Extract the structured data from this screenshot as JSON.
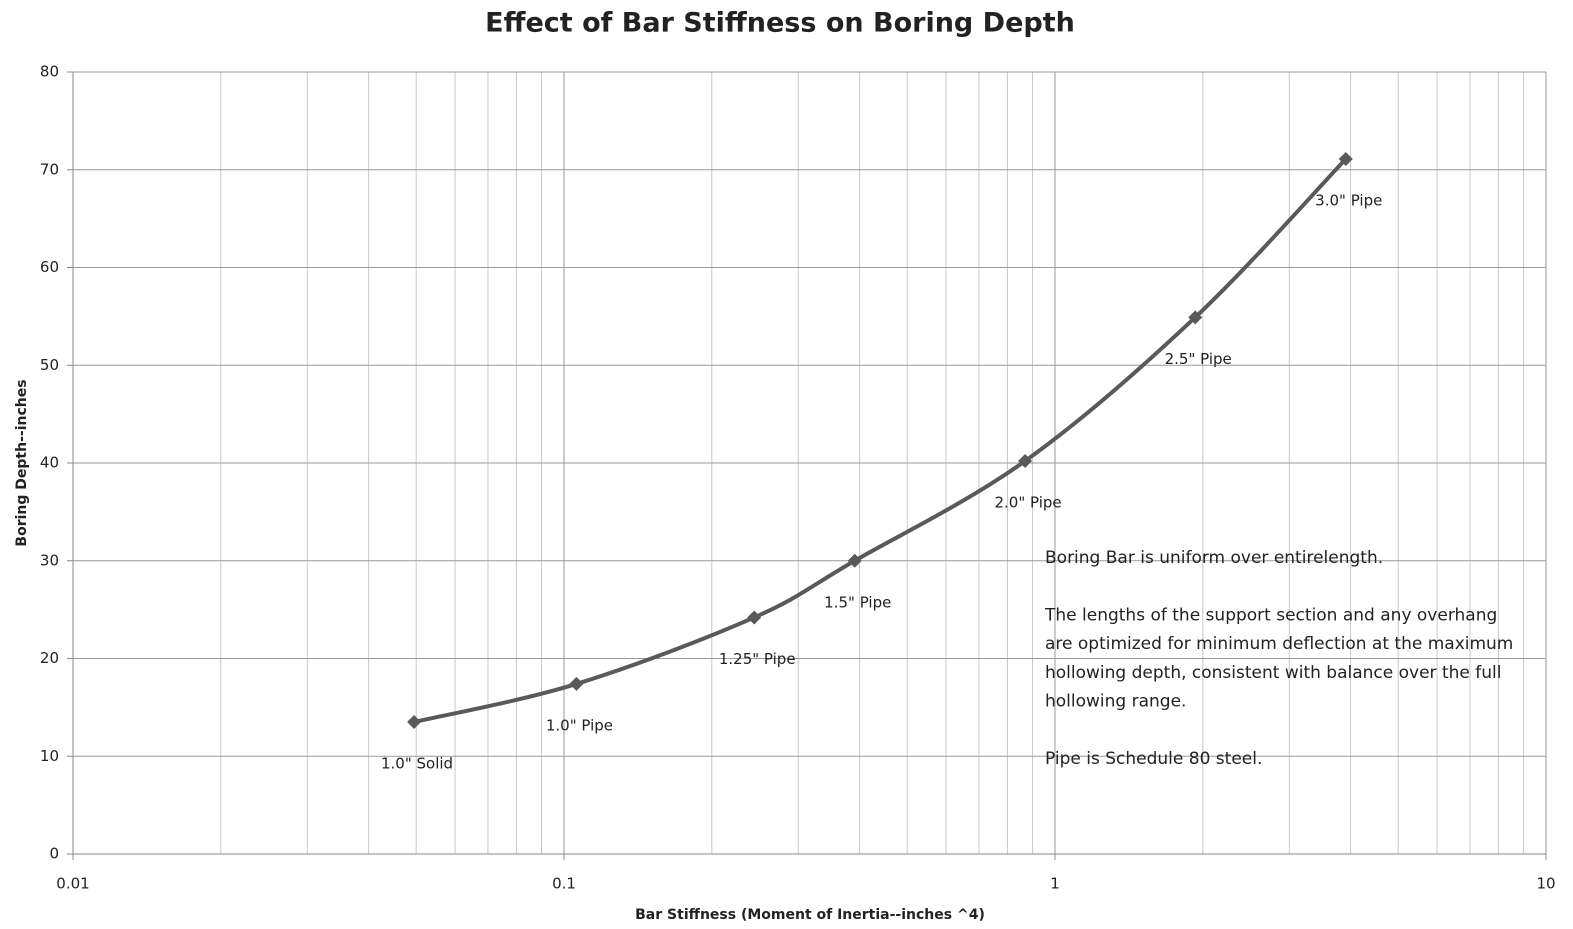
{
  "chart_data": {
    "type": "line",
    "title": "Effect of Bar Stiffness on Boring Depth",
    "x_label": "Bar Stiffness (Moment of Inertia--inches ^4)",
    "y_label": "Boring Depth--inches",
    "x_scale": "log",
    "minor_grid": true,
    "grid": true,
    "smooth": true,
    "xlim": [
      0.01,
      10
    ],
    "xticks": [
      0.01,
      0.1,
      1,
      10
    ],
    "ylim": [
      0,
      80
    ],
    "yticks": [
      0,
      10,
      20,
      30,
      40,
      50,
      60,
      70,
      80
    ],
    "series": [
      {
        "color": "#595959",
        "x": [
          0.0495,
          0.106,
          0.244,
          0.391,
          0.869,
          1.93,
          3.91
        ],
        "values": [
          13.5,
          17.4,
          24.2,
          30.0,
          40.2,
          54.9,
          71.1
        ],
        "labels": [
          "1.0\" Solid",
          "1.0\" Pipe",
          "1.25\" Pipe",
          "1.5\" Pipe",
          "2.0\" Pipe",
          "2.5\" Pipe",
          "3.0\" Pipe"
        ]
      }
    ],
    "annotation": [
      [
        "Boring Bar is uniform over entirelength."
      ],
      [
        "The lengths of the support section and any overhang",
        "are optimized for minimum deflection at the maximum",
        "hollowing depth, consistent with balance over the full",
        "hollowing range."
      ],
      [
        "Pipe is Schedule 80 steel."
      ]
    ]
  }
}
